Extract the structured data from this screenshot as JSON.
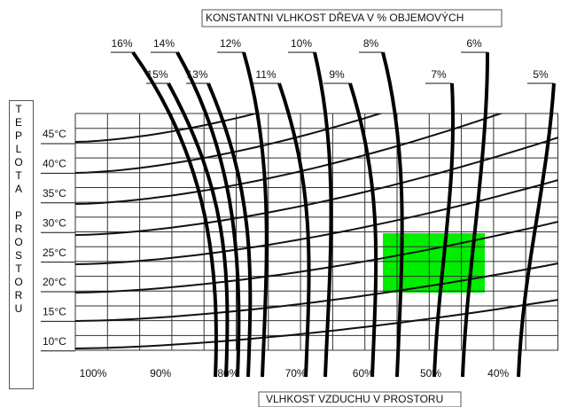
{
  "title": "KONSTANTNI VLHKOST DŘEVA V % OBJEMOVÝCH",
  "x_axis_label": "VLHKOST VZDUCHU V PROSTORU",
  "y_axis_label": "TEPLOTA PROSTORU",
  "humidity_labels": [
    "100%",
    "90%",
    "80%",
    "70%",
    "60%",
    "50%",
    "40%"
  ],
  "temperature_labels": [
    "45°C",
    "40°C",
    "35°C",
    "30°C",
    "25°C",
    "20°C",
    "15°C",
    "10°C"
  ],
  "moisture_labels": [
    "16%",
    "15%",
    "14%",
    "13%",
    "12%",
    "11%",
    "10%",
    "9%",
    "8%",
    "7%",
    "6%",
    "5%"
  ]
}
